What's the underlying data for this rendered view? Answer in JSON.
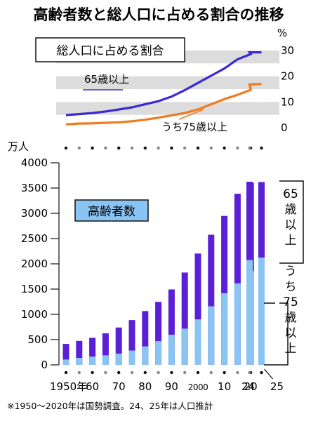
{
  "title": "高齢者数と総人口に占める割合の推移",
  "footnote": "※1950～2020年は国勢調査。24、25年は人口推計",
  "colors": {
    "over65": "#5a1fd6",
    "over75": "#8ac4f2",
    "line65": "#3a2ad0",
    "line75": "#f07a1e",
    "band": "#dcdcdc"
  },
  "chart_data": [
    {
      "type": "line",
      "title": "総人口に占める割合",
      "ylabel": "%",
      "ylim": [
        0,
        30
      ],
      "yticks": [
        "0",
        "10",
        "20",
        "30"
      ],
      "x": [
        1950,
        1955,
        1960,
        1965,
        1970,
        1975,
        1980,
        1985,
        1990,
        1995,
        2000,
        2005,
        2010,
        2015,
        2020,
        2024,
        2025
      ],
      "series": [
        {
          "name": "65歳以上",
          "values": [
            4.9,
            5.3,
            5.7,
            6.3,
            7.1,
            7.9,
            9.1,
            10.3,
            12.1,
            14.6,
            17.4,
            20.2,
            23.0,
            26.6,
            28.6,
            29.3,
            29.3
          ]
        },
        {
          "name": "うち75歳以上",
          "values": [
            1.3,
            1.6,
            1.7,
            1.9,
            2.1,
            2.5,
            3.1,
            3.9,
            4.8,
            5.7,
            7.1,
            9.1,
            11.1,
            12.8,
            14.7,
            16.8,
            17.0
          ]
        }
      ]
    },
    {
      "type": "bar",
      "title": "高齢者数",
      "ylabel": "万人",
      "ylim": [
        0,
        4000
      ],
      "yticks": [
        "0",
        "500",
        "1000",
        "1500",
        "2000",
        "2500",
        "3000",
        "3500",
        "4000"
      ],
      "categories": [
        "1950",
        "1955",
        "1960",
        "1965",
        "1970",
        "1975",
        "1980",
        "1985",
        "1990",
        "1995",
        "2000",
        "2005",
        "2010",
        "2015",
        "2020",
        "2024",
        "2025"
      ],
      "xtick_labels": [
        "1950年",
        "60",
        "70",
        "80",
        "90",
        "2000",
        "10",
        "20",
        "24",
        "25"
      ],
      "series": [
        {
          "name": "65歳以上",
          "values": [
            416,
            475,
            535,
            624,
            739,
            887,
            1065,
            1247,
            1493,
            1828,
            2204,
            2576,
            2948,
            3387,
            3603,
            3625,
            3619
          ]
        },
        {
          "name": "うち75歳以上",
          "values": [
            106,
            139,
            164,
            189,
            224,
            284,
            366,
            471,
            597,
            717,
            901,
            1160,
            1419,
            1613,
            1860,
            2076,
            2124
          ]
        }
      ],
      "bracket_labels": {
        "over65": "65歳以上",
        "over75": "うち75歳以上"
      }
    }
  ]
}
